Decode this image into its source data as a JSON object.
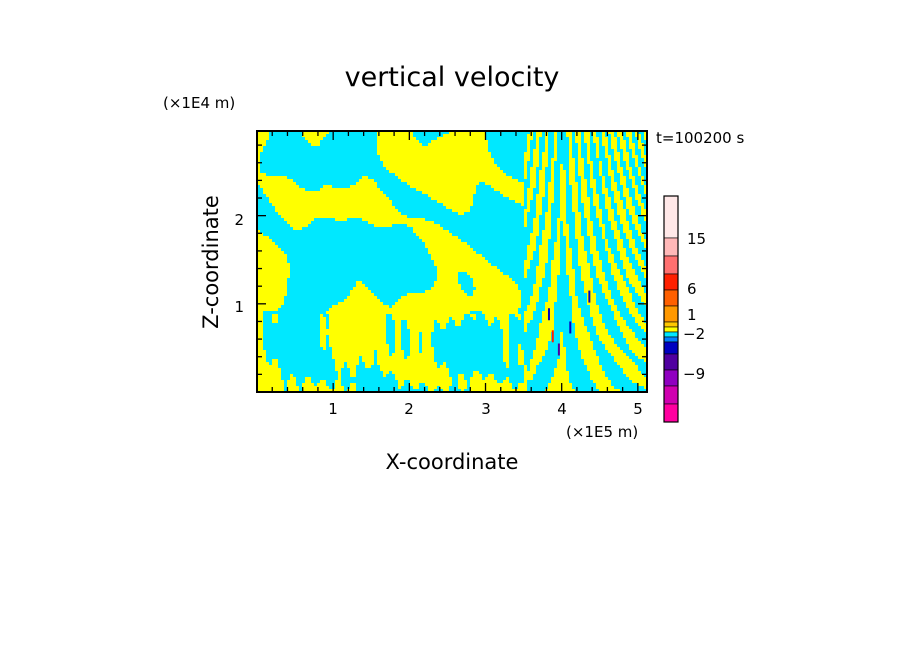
{
  "chart_data": {
    "type": "heatmap",
    "title": "vertical velocity",
    "time_label": "t=100200 s",
    "xlabel": "X-coordinate",
    "ylabel": "Z-coordinate",
    "x_unit": "(×1E5 m)",
    "y_unit": "(×1E4 m)",
    "xlim": [
      0,
      5.12
    ],
    "ylim": [
      0,
      2.96
    ],
    "x_ticks": [
      1,
      2,
      3,
      4,
      5
    ],
    "y_ticks": [
      1,
      2
    ],
    "background_color": "#00e8ff",
    "positive_color": "#ffff00",
    "colorbar": {
      "tick_labels": [
        "15",
        "6",
        "1",
        "−2",
        "−9"
      ],
      "tick_values": [
        15,
        6,
        1,
        -2,
        -9
      ],
      "levels_top_to_bottom": [
        {
          "color": "#ffe8e8"
        },
        {
          "color": "#ffb8b8"
        },
        {
          "color": "#ff7070"
        },
        {
          "color": "#ff2000"
        },
        {
          "color": "#ff6000"
        },
        {
          "color": "#ff9800"
        },
        {
          "color": "#ffc800"
        },
        {
          "color": "#ffff00"
        },
        {
          "color": "#00e8ff"
        },
        {
          "color": "#0080ff"
        },
        {
          "color": "#0000c0"
        },
        {
          "color": "#5000a0"
        },
        {
          "color": "#9000c0"
        },
        {
          "color": "#d000b0"
        },
        {
          "color": "#ff00a0"
        }
      ]
    }
  }
}
